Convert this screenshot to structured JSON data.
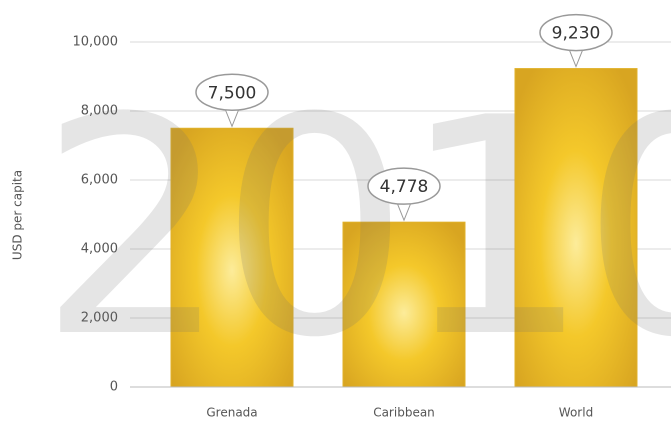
{
  "chart_data": {
    "type": "bar",
    "watermark": "2010",
    "y_label": "USD per capita",
    "categories": [
      "Grenada",
      "Caribbean",
      "World"
    ],
    "values": [
      7500,
      4778,
      9230
    ],
    "value_labels": [
      "7,500",
      "4,778",
      "9,230"
    ],
    "color": "#e0b12a",
    "ylim": [
      0,
      10000
    ],
    "yticks": [
      0,
      {
        "value": 2000,
        "label": "2,000"
      },
      {
        "value": 4000,
        "label": "4,000"
      },
      {
        "value": 6000,
        "label": "6,000"
      },
      {
        "value": 8000,
        "label": "8,000"
      },
      {
        "value": 10000,
        "label": "10,000"
      }
    ],
    "grid": true
  }
}
